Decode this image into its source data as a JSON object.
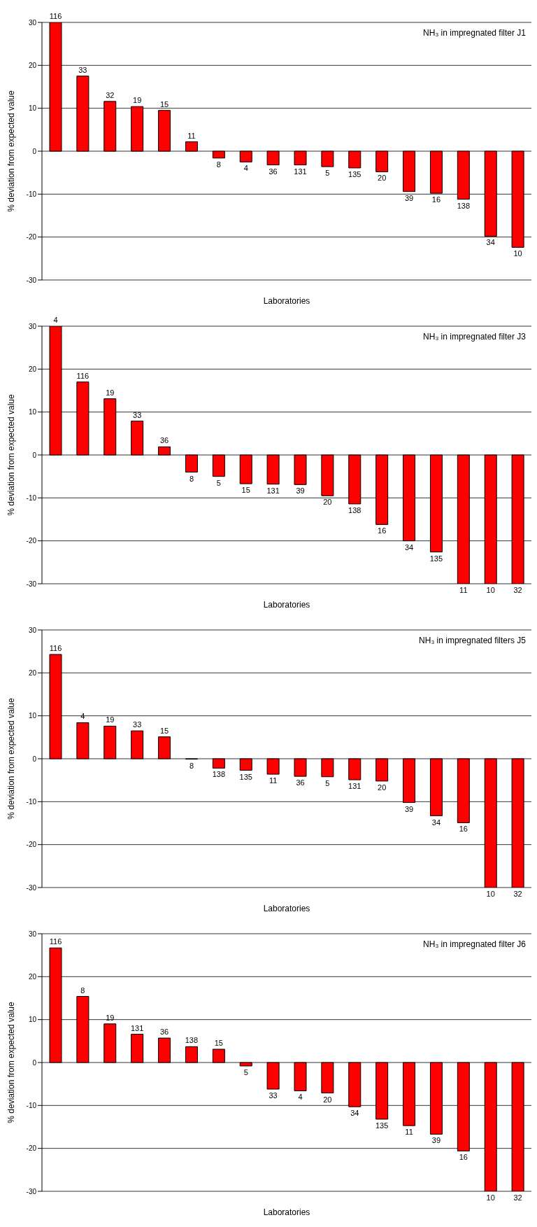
{
  "chart_data": [
    {
      "type": "bar",
      "title": "NH₃ in impregnated filter J1",
      "xlabel": "Laboratories",
      "ylabel": "% deviation from expected value",
      "color": "#ff0000",
      "ylim": [
        -30,
        30
      ],
      "yticks": [
        -30,
        -20,
        -10,
        0,
        10,
        20,
        30
      ],
      "grid": "y",
      "tick_labels": "y",
      "categories": [
        "116",
        "33",
        "32",
        "19",
        "15",
        "11",
        "8",
        "4",
        "36",
        "131",
        "5",
        "135",
        "20",
        "39",
        "16",
        "138",
        "34",
        "10"
      ],
      "values": [
        30,
        17.5,
        11.6,
        10.4,
        9.5,
        2.2,
        -1.6,
        -2.5,
        -3.2,
        -3.2,
        -3.6,
        -3.9,
        -4.8,
        -9.4,
        -9.8,
        -11.2,
        -19.8,
        -22.4
      ]
    },
    {
      "type": "bar",
      "title": "NH₃ in impregnated filter J3",
      "xlabel": "Laboratories",
      "ylabel": "% deviation from expected value",
      "color": "#ff0000",
      "ylim": [
        -30,
        30
      ],
      "yticks": [
        -30,
        -20,
        -10,
        0,
        10,
        20,
        30
      ],
      "grid": "y",
      "tick_labels": "y",
      "categories": [
        "4",
        "116",
        "19",
        "33",
        "36",
        "8",
        "5",
        "15",
        "131",
        "39",
        "20",
        "138",
        "16",
        "34",
        "135",
        "11",
        "10",
        "32"
      ],
      "values": [
        30,
        17.0,
        13.1,
        7.9,
        1.9,
        -4.0,
        -5.0,
        -6.7,
        -6.8,
        -6.9,
        -9.5,
        -11.4,
        -16.2,
        -20.0,
        -22.6,
        -30,
        -30,
        -30
      ]
    },
    {
      "type": "bar",
      "title": "NH₃ in impregnated filters J5",
      "xlabel": "Laboratories",
      "ylabel": "% deviation from expected value",
      "color": "#ff0000",
      "ylim": [
        -30,
        30
      ],
      "yticks": [
        -30,
        -20,
        -10,
        0,
        10,
        20,
        30
      ],
      "grid": "y",
      "tick_labels": "y",
      "categories": [
        "116",
        "4",
        "19",
        "33",
        "15",
        "8",
        "138",
        "135",
        "11",
        "36",
        "5",
        "131",
        "20",
        "39",
        "34",
        "16",
        "10",
        "32"
      ],
      "values": [
        24.3,
        8.4,
        7.6,
        6.5,
        5.1,
        -0.1,
        -2.2,
        -2.7,
        -3.6,
        -4.1,
        -4.2,
        -4.9,
        -5.2,
        -10.2,
        -13.3,
        -14.9,
        -30,
        -30
      ]
    },
    {
      "type": "bar",
      "title": "NH₃ in impregnated filter J6",
      "xlabel": "Laboratories",
      "ylabel": "% deviation from expected value",
      "color": "#ff0000",
      "ylim": [
        -30,
        30
      ],
      "yticks": [
        -30,
        -20,
        -10,
        0,
        10,
        20,
        30
      ],
      "grid": "y",
      "tick_labels": "y",
      "categories": [
        "116",
        "8",
        "19",
        "131",
        "36",
        "138",
        "15",
        "5",
        "33",
        "4",
        "20",
        "34",
        "135",
        "11",
        "39",
        "16",
        "10",
        "32"
      ],
      "values": [
        26.7,
        15.4,
        9.0,
        6.6,
        5.7,
        3.7,
        3.1,
        -0.8,
        -6.2,
        -6.6,
        -7.1,
        -10.3,
        -13.2,
        -14.7,
        -16.7,
        -20.6,
        -30,
        -30
      ]
    }
  ]
}
